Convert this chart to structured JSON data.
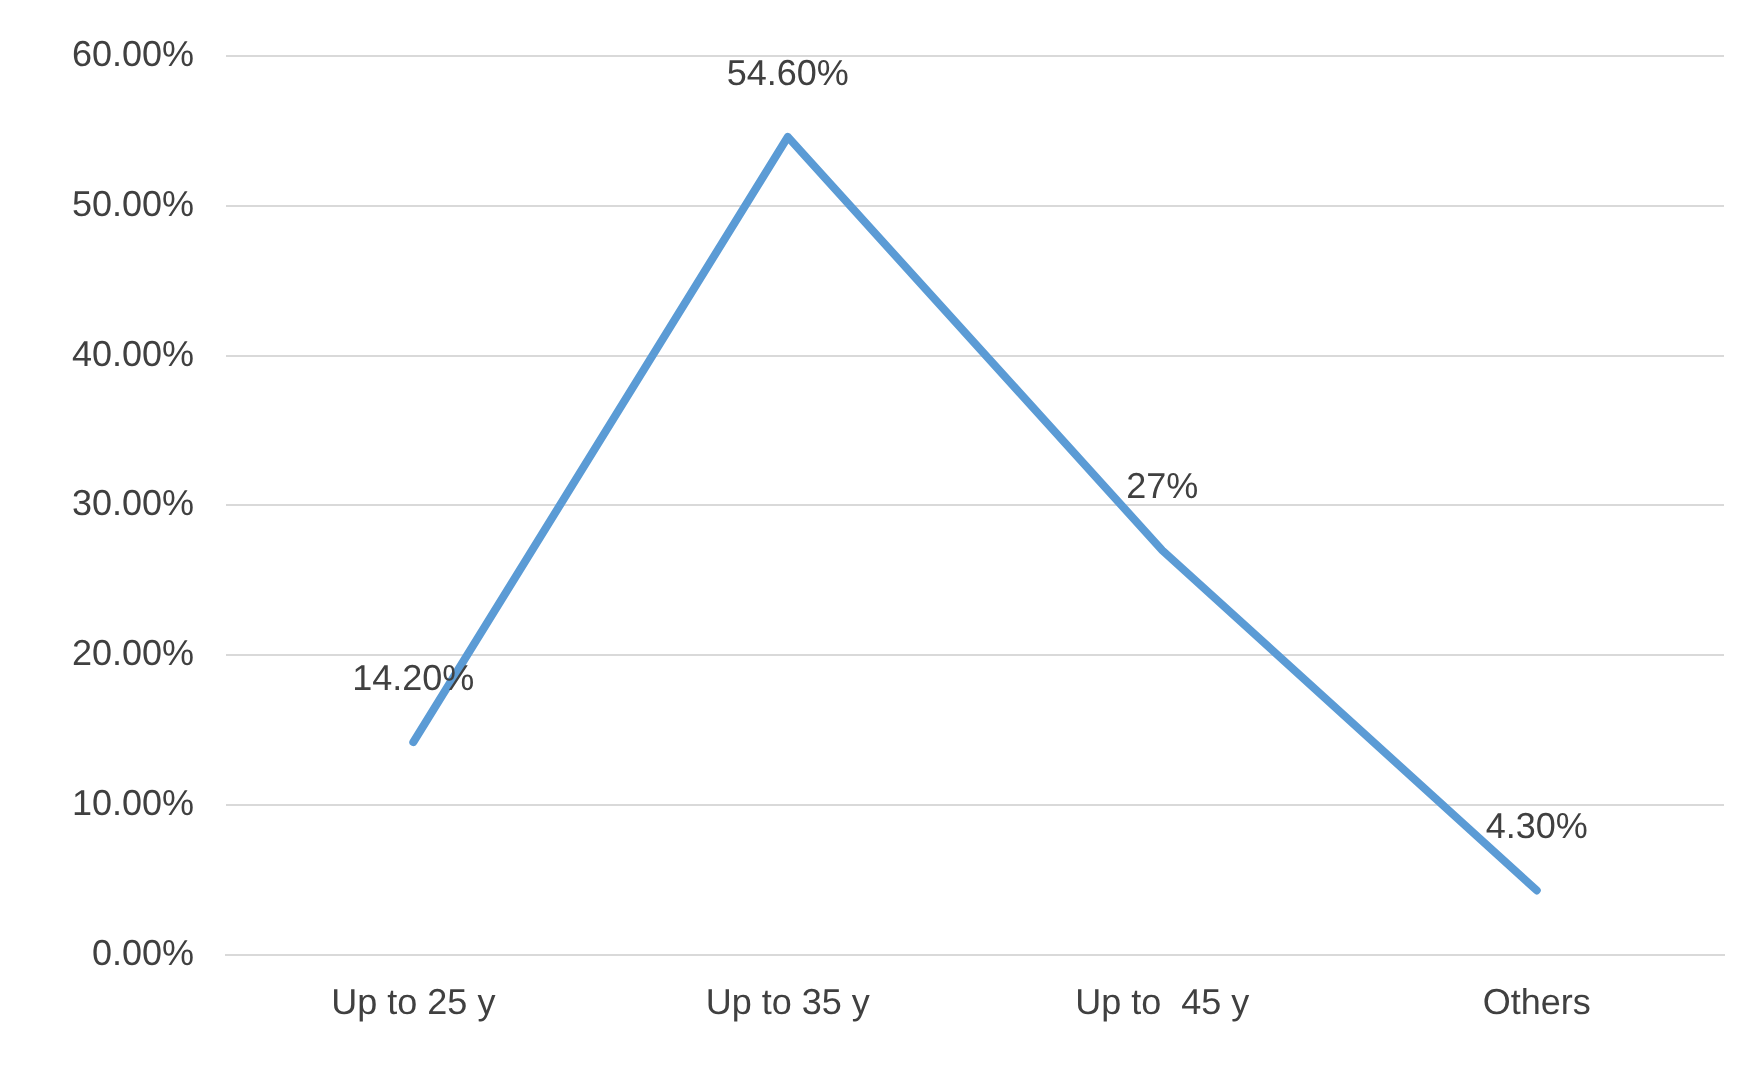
{
  "chart_data": {
    "type": "line",
    "categories": [
      "Up to 25 y",
      "Up to 35 y",
      "Up to  45 y",
      "Others"
    ],
    "values": [
      14.2,
      54.6,
      27,
      4.3
    ],
    "color": "#5b9bd5",
    "value_labels": [
      "14.20%",
      "54.60%",
      "27%",
      "4.30%"
    ],
    "ylim": [
      0,
      60
    ],
    "yticks": [
      {
        "value": 0,
        "label": "0.00%"
      },
      {
        "value": 10,
        "label": "10.00%"
      },
      {
        "value": 20,
        "label": "20.00%"
      },
      {
        "value": 30,
        "label": "30.00%"
      },
      {
        "value": 40,
        "label": "40.00%"
      },
      {
        "value": 50,
        "label": "50.00%"
      },
      {
        "value": 60,
        "label": "60.00%"
      }
    ],
    "grid": "y",
    "marker": "none",
    "line_style": "solid"
  }
}
